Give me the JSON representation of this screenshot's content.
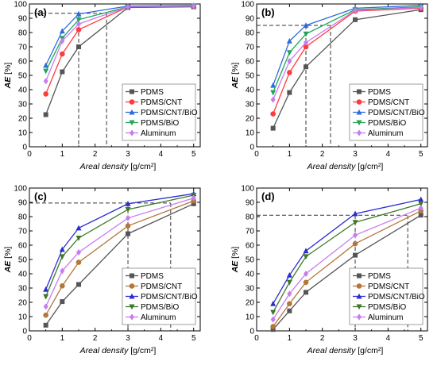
{
  "chart_data": [
    {
      "type": "line",
      "panel_label": "(a)",
      "xlabel_italic": "Areal density",
      "xlabel_unit": " [g/cm²]",
      "ylabel_italic": "AE",
      "ylabel_unit": " [%]",
      "xlim": [
        0,
        5.2
      ],
      "ylim": [
        0,
        100
      ],
      "xticks": [
        0,
        1,
        2,
        3,
        4,
        5
      ],
      "yticks": [
        0,
        10,
        20,
        30,
        40,
        50,
        60,
        70,
        80,
        90,
        100
      ],
      "legend_position": "bottom-right",
      "x": [
        0.5,
        1,
        1.5,
        3,
        5
      ],
      "series": [
        {
          "name": "PDMS",
          "color": "#555555",
          "marker": "square",
          "values": [
            22.5,
            52.5,
            70,
            97.5,
            98
          ]
        },
        {
          "name": "PDMS/CNT",
          "color": "#ff3b3b",
          "marker": "circle",
          "values": [
            37,
            65,
            82,
            98,
            98.5
          ]
        },
        {
          "name": "PDMS/CNT/BiO",
          "color": "#2d6cdf",
          "marker": "triangle-up",
          "values": [
            57,
            81,
            93,
            98.5,
            99
          ]
        },
        {
          "name": "PDMS/BiO",
          "color": "#22a55a",
          "marker": "triangle-down",
          "values": [
            53,
            76,
            89,
            98,
            98.5
          ]
        },
        {
          "name": "Aluminum",
          "color": "#c77cf0",
          "marker": "diamond",
          "values": [
            46,
            74,
            86,
            98,
            98.5
          ]
        }
      ],
      "guides": {
        "y": 93.5,
        "x": [
          1.5,
          2.35
        ]
      }
    },
    {
      "type": "line",
      "panel_label": "(b)",
      "xlabel_italic": "Areal density",
      "xlabel_unit": " [g/cm²]",
      "ylabel_italic": "AE",
      "ylabel_unit": " [%]",
      "xlim": [
        0,
        5.2
      ],
      "ylim": [
        0,
        100
      ],
      "xticks": [
        0,
        1,
        2,
        3,
        4,
        5
      ],
      "yticks": [
        0,
        10,
        20,
        30,
        40,
        50,
        60,
        70,
        80,
        90,
        100
      ],
      "legend_position": "bottom-right",
      "x": [
        0.5,
        1,
        1.5,
        3,
        5
      ],
      "series": [
        {
          "name": "PDMS",
          "color": "#555555",
          "marker": "square",
          "values": [
            13,
            38,
            56,
            89,
            96
          ]
        },
        {
          "name": "PDMS/CNT",
          "color": "#ff3b3b",
          "marker": "circle",
          "values": [
            23,
            52,
            70,
            95,
            97
          ]
        },
        {
          "name": "PDMS/CNT/BiO",
          "color": "#2d6cdf",
          "marker": "triangle-up",
          "values": [
            43,
            74,
            85,
            97,
            99
          ]
        },
        {
          "name": "PDMS/BiO",
          "color": "#22a55a",
          "marker": "triangle-down",
          "values": [
            38,
            66,
            79,
            96,
            98
          ]
        },
        {
          "name": "Aluminum",
          "color": "#c77cf0",
          "marker": "diamond",
          "values": [
            33,
            60,
            73,
            95.5,
            97.5
          ]
        }
      ],
      "guides": {
        "y": 85,
        "x": [
          1.5,
          2.25
        ]
      }
    },
    {
      "type": "line",
      "panel_label": "(c)",
      "xlabel_italic": "Areal density",
      "xlabel_unit": " [g/cm²]",
      "ylabel_italic": "AE",
      "ylabel_unit": " [%]",
      "xlim": [
        0,
        5.2
      ],
      "ylim": [
        0,
        100
      ],
      "xticks": [
        0,
        1,
        2,
        3,
        4,
        5
      ],
      "yticks": [
        0,
        10,
        20,
        30,
        40,
        50,
        60,
        70,
        80,
        90,
        100
      ],
      "legend_position": "bottom-right",
      "x": [
        0.5,
        1,
        1.5,
        3,
        5
      ],
      "series": [
        {
          "name": "PDMS",
          "color": "#555555",
          "marker": "square",
          "values": [
            4,
            20.5,
            32.5,
            68,
            89
          ]
        },
        {
          "name": "PDMS/CNT",
          "color": "#b2773a",
          "marker": "circle",
          "values": [
            11,
            31.5,
            48,
            73.5,
            91
          ]
        },
        {
          "name": "PDMS/CNT/BiO",
          "color": "#2b2bd6",
          "marker": "triangle-up",
          "values": [
            29,
            57,
            72,
            89,
            96
          ]
        },
        {
          "name": "PDMS/BiO",
          "color": "#3c7a2a",
          "marker": "triangle-down",
          "values": [
            24,
            52,
            65,
            85,
            95
          ]
        },
        {
          "name": "Aluminum",
          "color": "#c77cf0",
          "marker": "diamond",
          "values": [
            17,
            42,
            55,
            79,
            93
          ]
        }
      ],
      "guides": {
        "y": 89.5,
        "x": [
          3,
          4.3
        ]
      }
    },
    {
      "type": "line",
      "panel_label": "(d)",
      "xlabel_italic": "Areal density",
      "xlabel_unit": " [g/cm²]",
      "ylabel_italic": "AE",
      "ylabel_unit": " [%]",
      "xlim": [
        0,
        5.2
      ],
      "ylim": [
        0,
        100
      ],
      "xticks": [
        0,
        1,
        2,
        3,
        4,
        5
      ],
      "yticks": [
        0,
        10,
        20,
        30,
        40,
        50,
        60,
        70,
        80,
        90,
        100
      ],
      "legend_position": "bottom-right",
      "x": [
        0.5,
        1,
        1.5,
        3,
        5
      ],
      "series": [
        {
          "name": "PDMS",
          "color": "#555555",
          "marker": "square",
          "values": [
            1,
            14,
            27,
            53,
            81
          ]
        },
        {
          "name": "PDMS/CNT",
          "color": "#b2773a",
          "marker": "circle",
          "values": [
            3,
            19,
            34,
            61,
            84
          ]
        },
        {
          "name": "PDMS/CNT/BiO",
          "color": "#2b2bd6",
          "marker": "triangle-up",
          "values": [
            19,
            39,
            56,
            82,
            92
          ]
        },
        {
          "name": "PDMS/BiO",
          "color": "#3c7a2a",
          "marker": "triangle-down",
          "values": [
            13,
            34,
            52,
            76,
            89
          ]
        },
        {
          "name": "Aluminum",
          "color": "#c77cf0",
          "marker": "diamond",
          "values": [
            8,
            26,
            40,
            67,
            86
          ]
        }
      ],
      "guides": {
        "y": 81,
        "x": [
          3,
          4.6
        ]
      }
    }
  ]
}
